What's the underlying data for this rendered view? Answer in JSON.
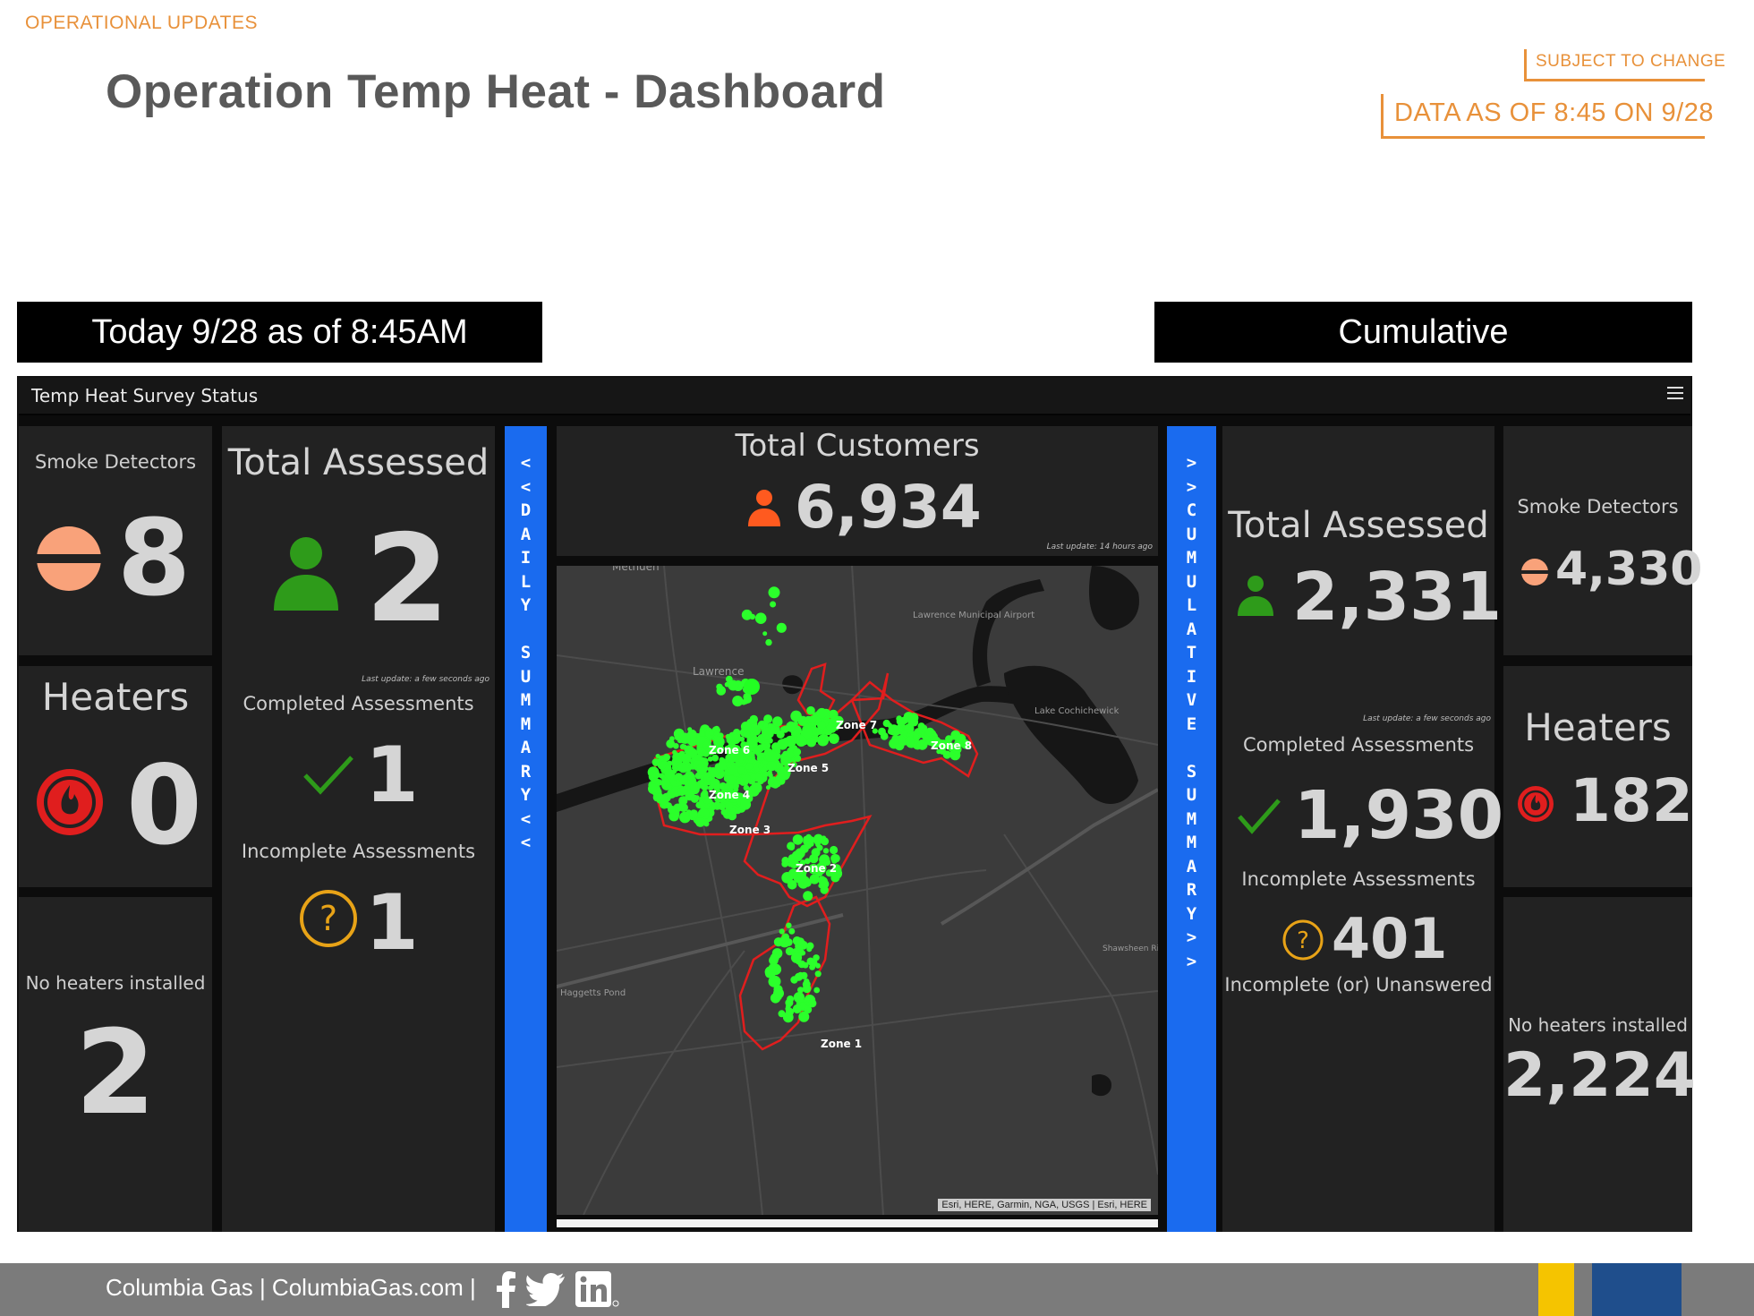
{
  "header": {
    "section": "OPERATIONAL UPDATES",
    "title": "Operation Temp Heat - Dashboard",
    "subject_to_change": "SUBJECT TO CHANGE",
    "data_as_of": "DATA AS OF 8:45 ON 9/28"
  },
  "bars": {
    "today": "Today 9/28 as of 8:45AM",
    "cumulative": "Cumulative"
  },
  "dashboard": {
    "title": "Temp Heat Survey Status",
    "daily": {
      "smoke_label": "Smoke Detectors",
      "smoke_value": "8",
      "heaters_label": "Heaters",
      "heaters_value": "0",
      "no_heaters_label": "No heaters installed",
      "no_heaters_value": "2",
      "total_assessed_label": "Total Assessed",
      "total_assessed_value": "2",
      "last_update": "Last update: a few seconds ago",
      "completed_label": "Completed Assessments",
      "completed_value": "1",
      "incomplete_label": "Incomplete Assessments",
      "incomplete_value": "1"
    },
    "daily_strip": [
      "<",
      "<",
      "D",
      "A",
      "I",
      "L",
      "Y",
      "",
      "S",
      "U",
      "M",
      "M",
      "A",
      "R",
      "Y",
      "<",
      "<"
    ],
    "total_customers_label": "Total Customers",
    "total_customers_value": "6,934",
    "total_customers_update": "Last update: 14 hours ago",
    "map": {
      "labels": [
        "Methuen",
        "Lawrence",
        "Lawrence Municipal Airport",
        "Lake Cochichewick",
        "Haggetts Pond",
        "Shawsheen River"
      ],
      "zones": [
        "Zone 1",
        "Zone 2",
        "Zone 3",
        "Zone 4",
        "Zone 5",
        "Zone 6",
        "Zone 7",
        "Zone 8"
      ],
      "attribution": "Esri, HERE, Garmin, NGA, USGS | Esri, HERE"
    },
    "cumulative_strip": [
      ">",
      ">",
      "C",
      "U",
      "M",
      "U",
      "L",
      "A",
      "T",
      "I",
      "V",
      "E",
      "",
      "S",
      "U",
      "M",
      "M",
      "A",
      "R",
      "Y",
      ">",
      ">"
    ],
    "cumulative": {
      "total_assessed_label": "Total Assessed",
      "total_assessed_value": "2,331",
      "last_update": "Last update: a few seconds ago",
      "completed_label": "Completed Assessments",
      "completed_value": "1,930",
      "incomplete_label": "Incomplete Assessments",
      "incomplete_value": "401",
      "incomplete_unanswered_label": "Incomplete (or) Unanswered",
      "smoke_label": "Smoke Detectors",
      "smoke_value": "4,330",
      "heaters_label": "Heaters",
      "heaters_value": "182",
      "no_heaters_label": "No heaters installed",
      "no_heaters_value": "2,224"
    }
  },
  "footer": {
    "text": "Columbia Gas | ColumbiaGas.com |",
    "social_icons": [
      "facebook-icon",
      "twitter-icon",
      "linkedin-icon"
    ]
  },
  "colors": {
    "accent_orange": "#e8913a",
    "panel_bg": "#222222",
    "strip_blue": "#1a6bef",
    "person_green": "#2e9b1a",
    "person_orange": "#ff5a1f",
    "smoke_salmon": "#f9a27a",
    "heater_red": "#e01e1e",
    "question_gold": "#e8a317",
    "footer_gray": "#7b7b7b",
    "footer_yellow": "#f5c400",
    "footer_blue": "#1f4e8c"
  }
}
